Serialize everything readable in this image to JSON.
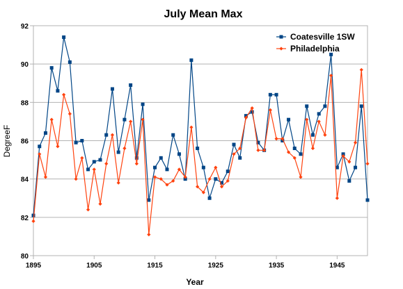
{
  "chart_data": {
    "type": "line",
    "title": "July Mean Max",
    "xlabel": "Year",
    "ylabel": "DegreeF",
    "xlim": [
      1895,
      1950
    ],
    "ylim": [
      80,
      92
    ],
    "xticks": [
      1895,
      1905,
      1915,
      1925,
      1935,
      1945
    ],
    "yticks": [
      80,
      82,
      84,
      86,
      88,
      90,
      92
    ],
    "grid": "horizontal",
    "legend": "top-right",
    "x": [
      1895,
      1896,
      1897,
      1898,
      1899,
      1900,
      1901,
      1902,
      1903,
      1904,
      1905,
      1906,
      1907,
      1908,
      1909,
      1910,
      1911,
      1912,
      1913,
      1914,
      1915,
      1916,
      1917,
      1918,
      1919,
      1920,
      1921,
      1922,
      1923,
      1924,
      1925,
      1926,
      1927,
      1928,
      1929,
      1930,
      1931,
      1932,
      1933,
      1934,
      1935,
      1936,
      1937,
      1938,
      1939,
      1940,
      1941,
      1942,
      1943,
      1944,
      1945,
      1946,
      1947,
      1948,
      1949,
      1950
    ],
    "series": [
      {
        "name": "Coatesville 1SW",
        "color": "#004586",
        "marker": "square",
        "values": [
          82.1,
          85.7,
          86.4,
          89.8,
          88.6,
          91.4,
          90.1,
          85.9,
          86.0,
          84.5,
          84.9,
          85.0,
          86.3,
          88.7,
          85.4,
          87.1,
          88.9,
          85.1,
          87.9,
          82.9,
          84.6,
          85.1,
          84.5,
          86.3,
          85.3,
          84.0,
          90.2,
          85.6,
          84.6,
          83.0,
          84.0,
          83.8,
          84.4,
          85.8,
          85.1,
          87.3,
          87.5,
          85.9,
          85.5,
          88.4,
          88.4,
          86.0,
          87.1,
          85.6,
          85.3,
          87.8,
          86.3,
          87.4,
          87.8,
          90.5,
          84.6,
          85.3,
          83.9,
          84.6,
          87.8,
          82.9
        ]
      },
      {
        "name": "Philadelphia",
        "color": "#ff420e",
        "marker": "diamond",
        "values": [
          81.8,
          85.3,
          84.1,
          87.1,
          85.7,
          88.4,
          87.4,
          84.0,
          85.1,
          82.4,
          84.5,
          82.7,
          84.8,
          86.3,
          83.8,
          85.6,
          87.0,
          84.8,
          87.1,
          81.1,
          84.1,
          84.0,
          83.7,
          83.9,
          84.5,
          84.1,
          86.7,
          83.6,
          83.3,
          84.0,
          84.6,
          83.6,
          83.9,
          85.3,
          85.6,
          87.2,
          87.7,
          85.5,
          85.5,
          87.6,
          86.1,
          86.1,
          85.4,
          85.1,
          84.1,
          87.1,
          85.6,
          87.0,
          86.3,
          89.4,
          83.0,
          85.2,
          84.9,
          85.9,
          89.7,
          84.8
        ]
      }
    ]
  }
}
